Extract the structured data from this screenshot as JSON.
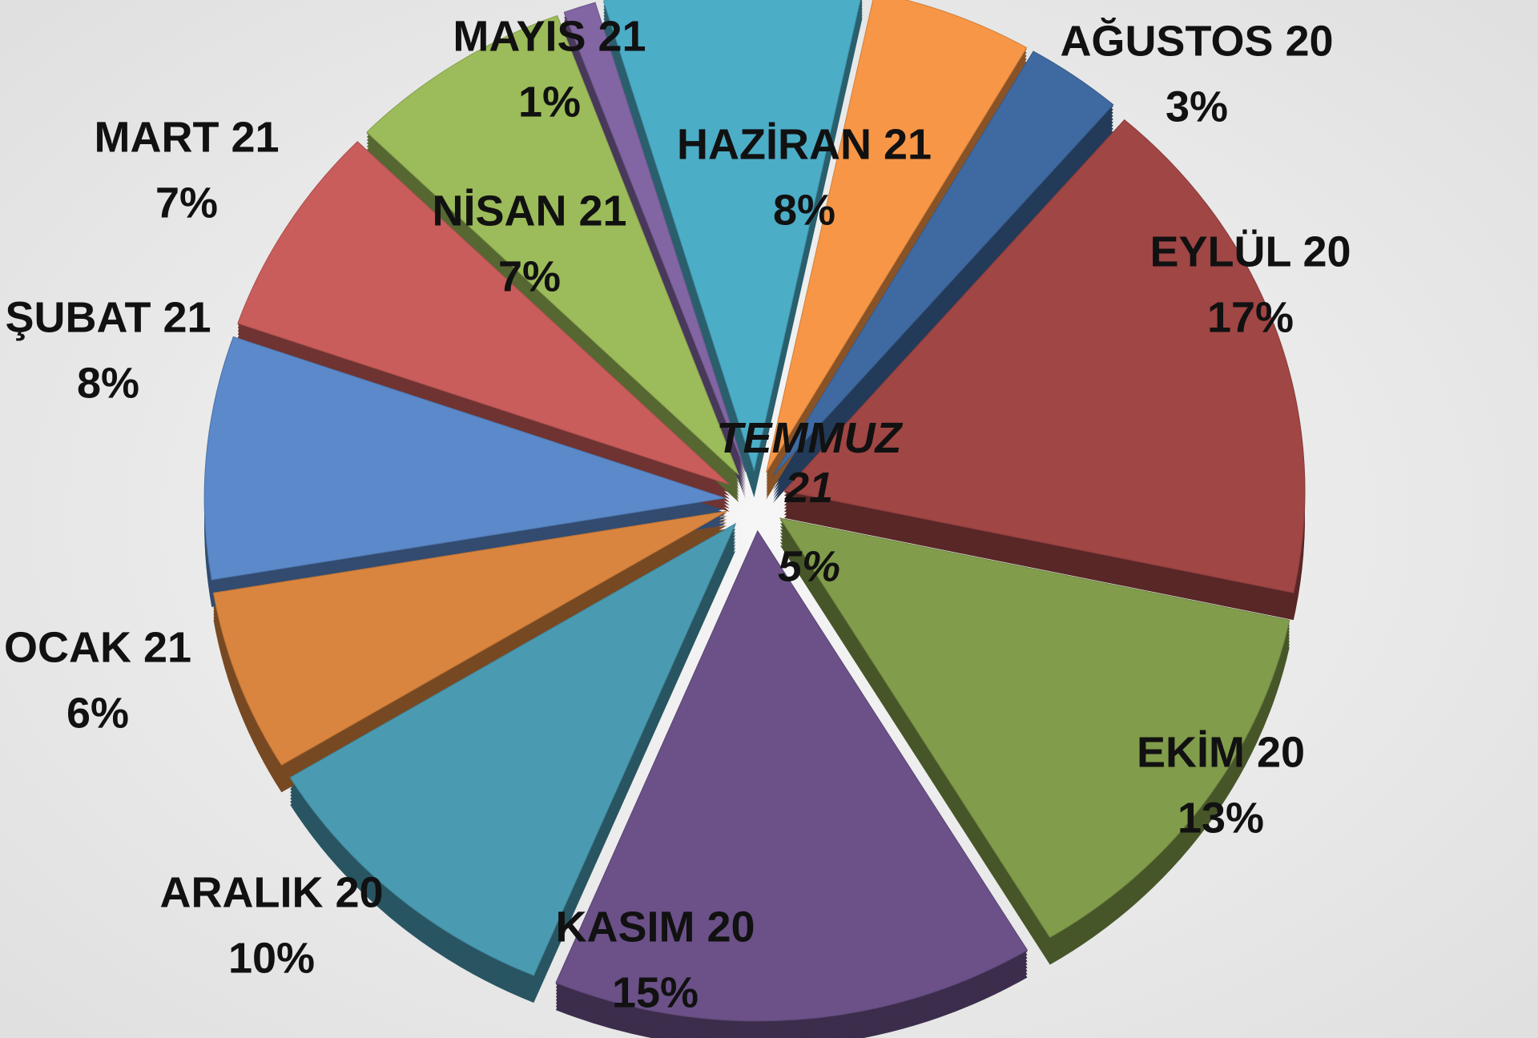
{
  "chart_data": {
    "type": "pie",
    "categories": [
      "AĞUSTOS 20",
      "EYLÜL 20",
      "EKİM 20",
      "KASIM 20",
      "ARALIK 20",
      "OCAK 21",
      "ŞUBAT 21",
      "MART 21",
      "NİSAN 21",
      "MAYIS 21",
      "HAZİRAN 21",
      "TEMMUZ 21"
    ],
    "values": [
      3,
      17,
      13,
      15,
      10,
      6,
      8,
      7,
      7,
      1,
      8,
      5
    ],
    "value_labels": [
      "3%",
      "17%",
      "13%",
      "15%",
      "10%",
      "6%",
      "8%",
      "7%",
      "7%",
      "1%",
      "8%",
      "5%"
    ],
    "colors": [
      "#3f6aa1",
      "#a04645",
      "#819c4b",
      "#6b5188",
      "#4a9bb2",
      "#d9853f",
      "#5b89c9",
      "#c95d5b",
      "#9cbb5a",
      "#8265a3",
      "#4cadc7",
      "#f79646"
    ]
  }
}
